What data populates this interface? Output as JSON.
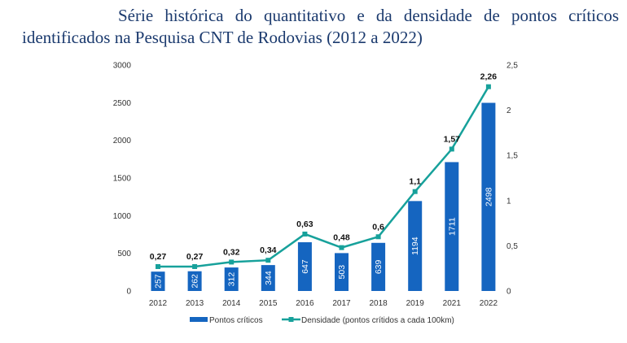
{
  "chart_data": {
    "type": "bar+line",
    "title_line1": "Série histórica do quantitativo e da densidade de pontos críticos",
    "title_line2": "identificados na Pesquisa CNT de Rodovias (2012 a 2022)",
    "categories": [
      "2012",
      "2013",
      "2014",
      "2015",
      "2016",
      "2017",
      "2018",
      "2019",
      "2021",
      "2022"
    ],
    "series": [
      {
        "name": "Pontos críticos",
        "type": "bar",
        "axis": "left",
        "values": [
          257,
          262,
          312,
          344,
          647,
          503,
          639,
          1194,
          1711,
          2498
        ],
        "labels": [
          "257",
          "262",
          "312",
          "344",
          "647",
          "503",
          "639",
          "1194",
          "1711",
          "2498"
        ],
        "color": "#1565c0"
      },
      {
        "name": "Densidade (pontos crítidos a cada 100km)",
        "type": "line",
        "axis": "right",
        "values": [
          0.27,
          0.27,
          0.32,
          0.34,
          0.63,
          0.48,
          0.6,
          1.1,
          1.57,
          2.26
        ],
        "labels": [
          "0,27",
          "0,27",
          "0,32",
          "0,34",
          "0,63",
          "0,48",
          "0,6",
          "1,1",
          "1,57",
          "2,26"
        ],
        "color": "#17a19b"
      }
    ],
    "left_axis": {
      "ylim": [
        0,
        3000
      ],
      "ticks": [
        "0",
        "500",
        "1000",
        "1500",
        "2000",
        "2500",
        "3000"
      ]
    },
    "right_axis": {
      "ylim": [
        0,
        2.5
      ],
      "ticks": [
        "0",
        "0,5",
        "1",
        "1,5",
        "2",
        "2,5"
      ]
    },
    "grid": false,
    "legend_position": "bottom"
  }
}
